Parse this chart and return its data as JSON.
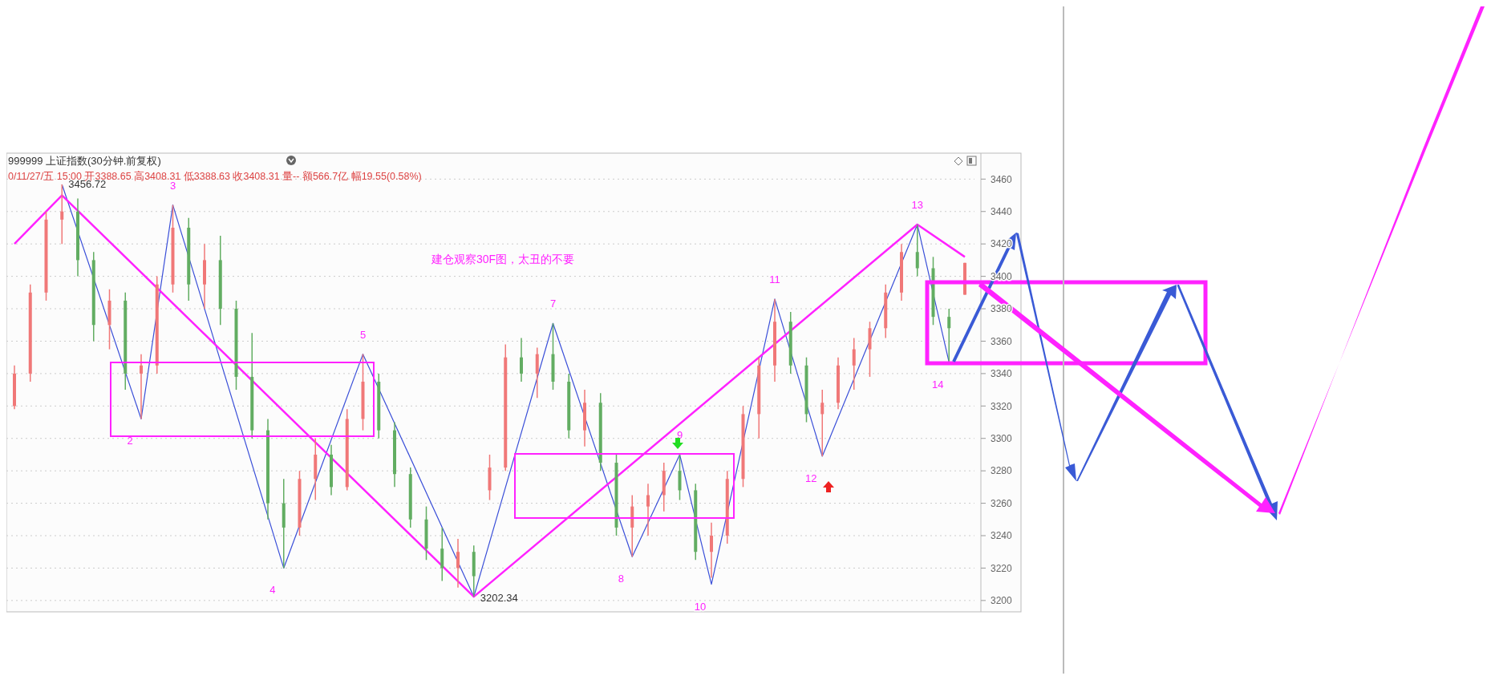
{
  "chart_data": {
    "type": "candlestick",
    "title": "999999 上证指数(30分钟.前复权)",
    "subtitle": "0/11/27/五 15:00 开3388.65 高3408.31 低3388.63 收3408.31 量-- 额566.7亿 幅19.55(0.58%)",
    "categories": [
      null,
      null,
      null,
      null,
      null,
      null,
      null,
      null,
      null,
      null,
      null,
      null,
      null,
      null,
      null,
      null,
      null,
      null,
      null,
      null,
      null,
      null,
      null,
      null,
      null,
      null,
      null,
      null,
      null,
      null,
      null,
      null,
      null,
      null,
      null,
      null,
      null,
      null,
      null,
      null,
      null,
      null,
      null,
      null,
      null,
      null,
      null,
      null,
      null,
      null,
      null,
      null,
      null,
      null,
      null,
      null,
      null,
      null,
      null,
      null,
      null
    ],
    "ohlc": [
      [
        3320,
        3345,
        3318,
        3340
      ],
      [
        3340,
        3395,
        3335,
        3390
      ],
      [
        3390,
        3440,
        3385,
        3435
      ],
      [
        3435,
        3456.72,
        3420,
        3440
      ],
      [
        3440,
        3448,
        3400,
        3410
      ],
      [
        3410,
        3415,
        3360,
        3370
      ],
      [
        3370,
        3392,
        3355,
        3385
      ],
      [
        3385,
        3390,
        3330,
        3340
      ],
      [
        3340,
        3352,
        3312,
        3345
      ],
      [
        3345,
        3400,
        3340,
        3395
      ],
      [
        3395,
        3444,
        3390,
        3430
      ],
      [
        3430,
        3436,
        3385,
        3395
      ],
      [
        3395,
        3420,
        3380,
        3410
      ],
      [
        3410,
        3425,
        3370,
        3380
      ],
      [
        3380,
        3385,
        3330,
        3338
      ],
      [
        3338,
        3365,
        3300,
        3305
      ],
      [
        3305,
        3312,
        3250,
        3260
      ],
      [
        3260,
        3275,
        3220,
        3245
      ],
      [
        3245,
        3280,
        3240,
        3275
      ],
      [
        3275,
        3300,
        3262,
        3290
      ],
      [
        3290,
        3296,
        3265,
        3270
      ],
      [
        3270,
        3318,
        3268,
        3312
      ],
      [
        3312,
        3352,
        3305,
        3335
      ],
      [
        3335,
        3340,
        3300,
        3305
      ],
      [
        3305,
        3310,
        3270,
        3278
      ],
      [
        3278,
        3282,
        3245,
        3250
      ],
      [
        3250,
        3258,
        3225,
        3232
      ],
      [
        3232,
        3245,
        3212,
        3220
      ],
      [
        3220,
        3238,
        3208,
        3230
      ],
      [
        3230,
        3234,
        3202.34,
        3215
      ],
      [
        3268,
        3290,
        3262,
        3282
      ],
      [
        3282,
        3358,
        3280,
        3350
      ],
      [
        3350,
        3362,
        3335,
        3340
      ],
      [
        3340,
        3356,
        3325,
        3352
      ],
      [
        3352,
        3371,
        3330,
        3335
      ],
      [
        3335,
        3340,
        3300,
        3305
      ],
      [
        3305,
        3330,
        3295,
        3322
      ],
      [
        3322,
        3328,
        3280,
        3285
      ],
      [
        3285,
        3290,
        3240,
        3245
      ],
      [
        3245,
        3265,
        3227,
        3258
      ],
      [
        3258,
        3272,
        3240,
        3265
      ],
      [
        3265,
        3285,
        3255,
        3280
      ],
      [
        3280,
        3290,
        3262,
        3268
      ],
      [
        3268,
        3272,
        3225,
        3230
      ],
      [
        3230,
        3248,
        3214,
        3240
      ],
      [
        3240,
        3280,
        3235,
        3275
      ],
      [
        3275,
        3320,
        3270,
        3315
      ],
      [
        3315,
        3350,
        3300,
        3345
      ],
      [
        3345,
        3386,
        3335,
        3372
      ],
      [
        3372,
        3378,
        3340,
        3345
      ],
      [
        3345,
        3350,
        3310,
        3315
      ],
      [
        3315,
        3330,
        3289,
        3322
      ],
      [
        3322,
        3350,
        3318,
        3345
      ],
      [
        3345,
        3362,
        3330,
        3355
      ],
      [
        3355,
        3372,
        3338,
        3368
      ],
      [
        3368,
        3395,
        3362,
        3390
      ],
      [
        3390,
        3420,
        3385,
        3415
      ],
      [
        3415,
        3432,
        3400,
        3405
      ],
      [
        3405,
        3412,
        3370,
        3375
      ],
      [
        3375,
        3380,
        3347,
        3368
      ],
      [
        3388.65,
        3408.31,
        3388.63,
        3408.31
      ]
    ],
    "series": [
      {
        "type": "line",
        "color": "#3a4fd8",
        "values": [
          null,
          null,
          null,
          3456.72,
          null,
          null,
          null,
          null,
          3312,
          null,
          3444,
          null,
          null,
          null,
          null,
          null,
          null,
          3220,
          null,
          null,
          null,
          null,
          3352,
          null,
          null,
          null,
          null,
          null,
          null,
          3202.34,
          null,
          null,
          null,
          null,
          3371,
          null,
          null,
          null,
          null,
          3227,
          null,
          null,
          3290,
          null,
          3210,
          null,
          null,
          null,
          3386,
          null,
          null,
          3289,
          null,
          null,
          null,
          null,
          null,
          3432,
          null,
          3347,
          null
        ],
        "value_labels": [
          null,
          null,
          null,
          "3456.72",
          null,
          null,
          null,
          null,
          null,
          null,
          null,
          null,
          null,
          null,
          null,
          null,
          null,
          null,
          null,
          null,
          null,
          null,
          null,
          null,
          null,
          null,
          null,
          null,
          null,
          "3202.34",
          null,
          null,
          null,
          null,
          null,
          null,
          null,
          null,
          null,
          null,
          null,
          null,
          null,
          null,
          null,
          null,
          null,
          null,
          null,
          null,
          null,
          null,
          null,
          null,
          null,
          null,
          null,
          null,
          null,
          null,
          null
        ]
      },
      {
        "type": "line",
        "color": "#ff22ff",
        "values": [
          3420,
          null,
          null,
          3450,
          null,
          null,
          null,
          null,
          null,
          null,
          null,
          null,
          null,
          null,
          null,
          null,
          null,
          null,
          null,
          null,
          null,
          null,
          null,
          null,
          null,
          null,
          null,
          null,
          null,
          3202.34,
          null,
          null,
          null,
          null,
          null,
          null,
          null,
          null,
          null,
          null,
          null,
          null,
          null,
          null,
          null,
          null,
          null,
          null,
          null,
          null,
          null,
          null,
          null,
          null,
          null,
          null,
          null,
          3432,
          null,
          null,
          3412
        ]
      }
    ],
    "ylim": [
      3193,
      3476
    ],
    "yticks": [
      3200,
      3220,
      3240,
      3260,
      3280,
      3300,
      3320,
      3340,
      3360,
      3380,
      3400,
      3420,
      3440,
      3460
    ],
    "grid": "y",
    "annotations": [
      "建仓观察30F图，太丑的不要",
      "2",
      "3",
      "4",
      "5",
      "7",
      "8",
      "9",
      "10",
      "11",
      "12",
      "13",
      "14"
    ]
  }
}
